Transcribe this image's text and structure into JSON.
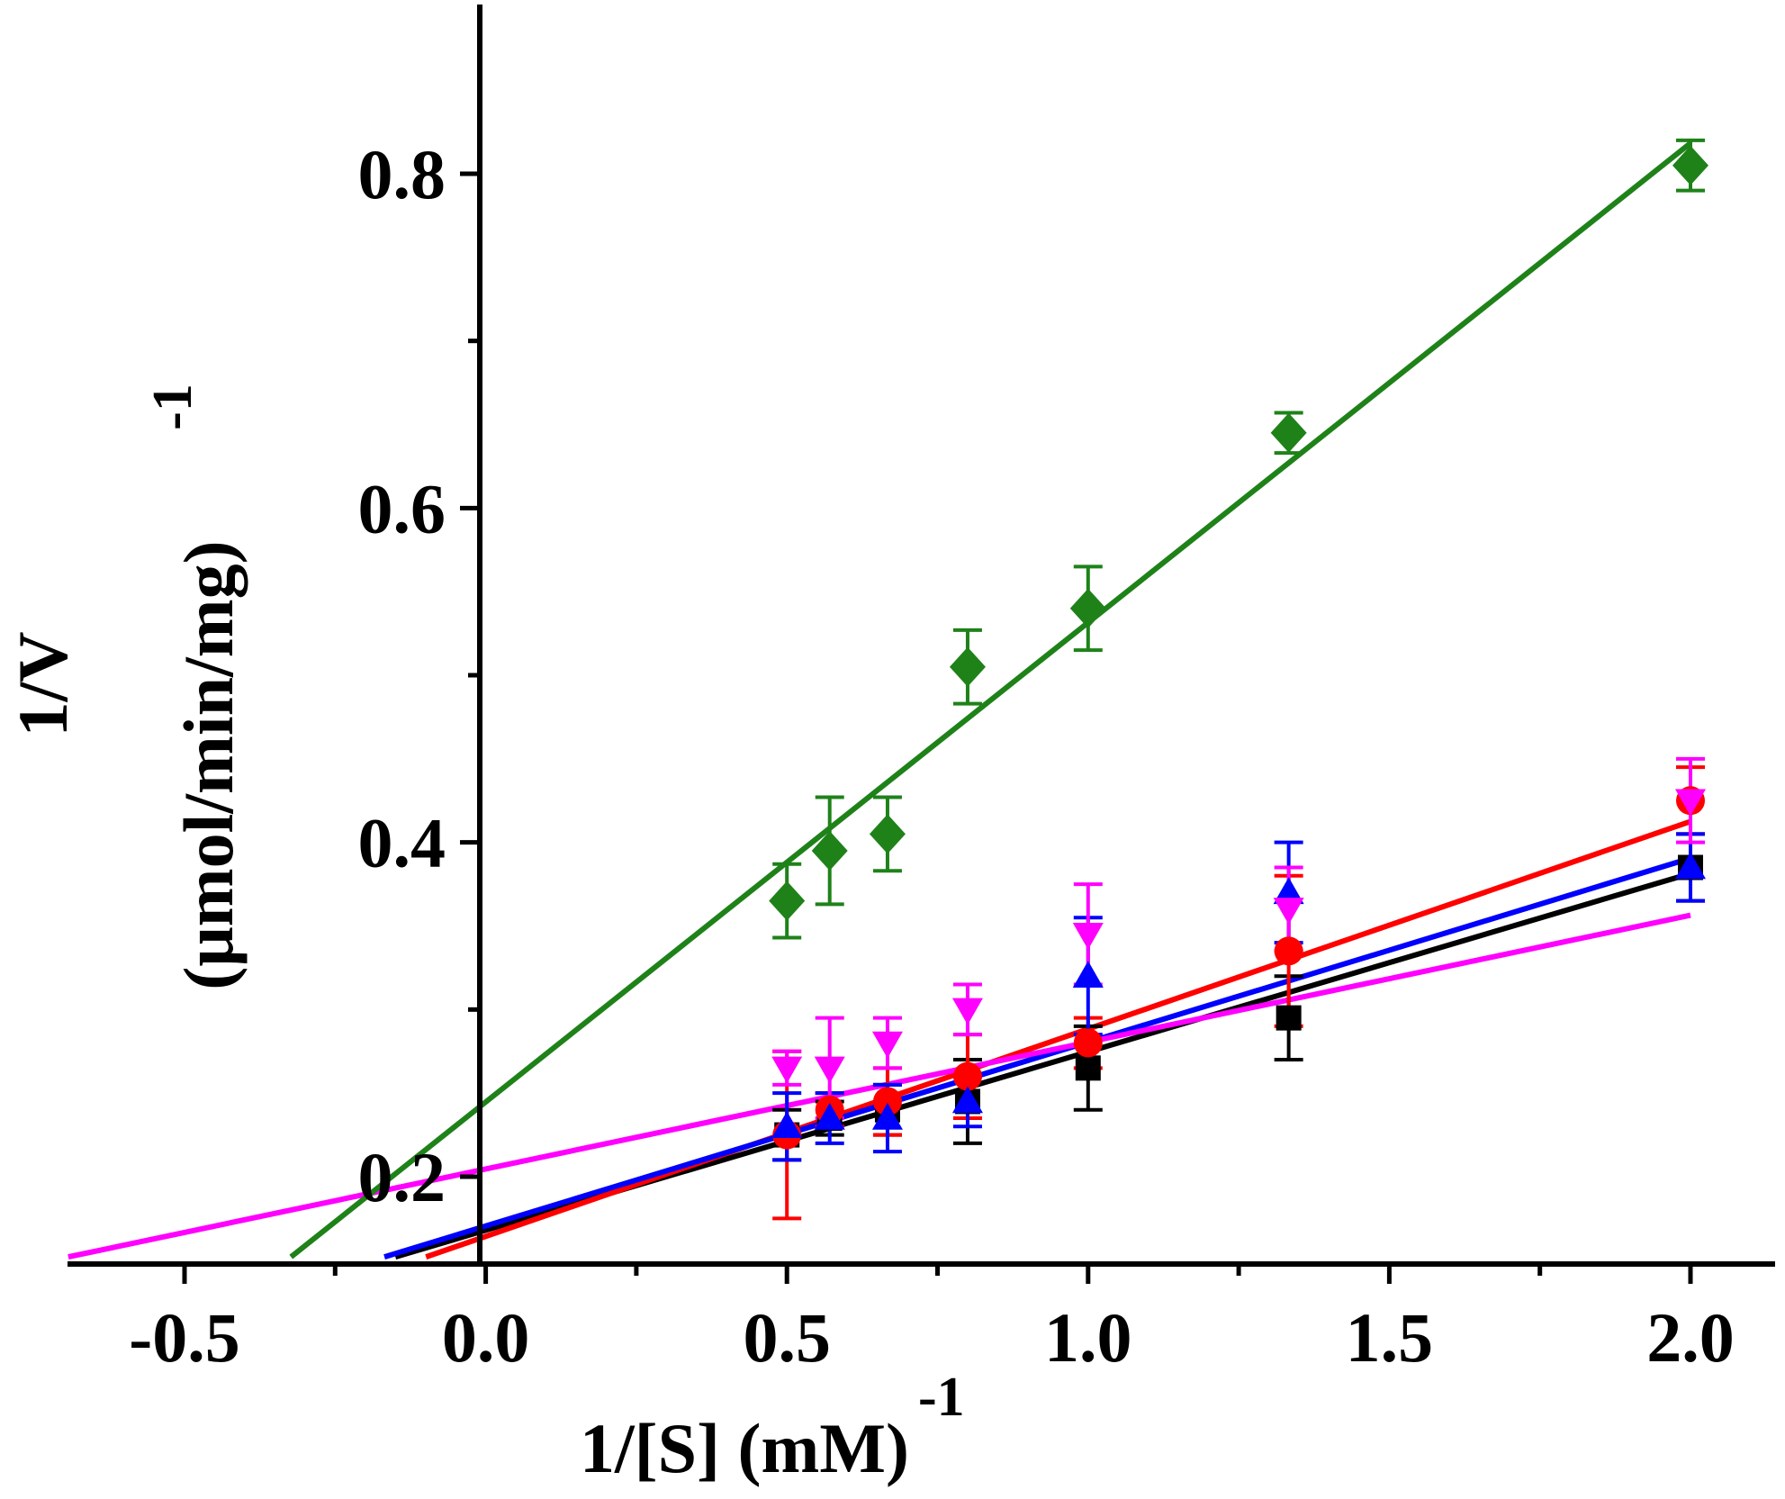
{
  "chart_data": {
    "type": "scatter",
    "title": "",
    "xlabel": "1/[S] (mM)",
    "xlabel_sup": "-1",
    "ylabel_line1": "1/V",
    "ylabel_line2": "(μmol/min/mg)",
    "ylabel_sup": "-1",
    "xlim": [
      -0.7,
      2.2
    ],
    "ylim": [
      0.152,
      0.885
    ],
    "x_ticks": [
      -0.5,
      0.0,
      0.5,
      1.0,
      1.5,
      2.0
    ],
    "x_tick_labels": [
      "-0.5",
      "0.0",
      "0.5",
      "1.0",
      "1.5",
      "2.0"
    ],
    "x_minor_ticks": [
      -0.25,
      0.25,
      0.75,
      1.25,
      1.75
    ],
    "y_ticks": [
      0.2,
      0.4,
      0.6,
      0.8
    ],
    "y_tick_labels": [
      "0.2",
      "0.4",
      "0.6",
      "0.8"
    ],
    "y_minor_ticks": [
      0.3,
      0.5,
      0.7
    ],
    "grid": false,
    "legend": "none",
    "x": [
      0.5,
      0.571,
      0.667,
      0.8,
      1.0,
      1.333,
      2.0
    ],
    "series": [
      {
        "name": "black",
        "color": "#000000",
        "marker": "square",
        "values": [
          0.225,
          0.235,
          0.24,
          0.245,
          0.265,
          0.295,
          0.385
        ],
        "errors": [
          0.015,
          0.01,
          0.015,
          0.025,
          0.025,
          0.025,
          0.02
        ],
        "fit": {
          "slope": 0.1067,
          "intercept": 0.168
        }
      },
      {
        "name": "red",
        "color": "#ff0000",
        "marker": "circle",
        "values": [
          0.225,
          0.24,
          0.245,
          0.26,
          0.28,
          0.335,
          0.425
        ],
        "errors": [
          0.05,
          0.01,
          0.02,
          0.025,
          0.015,
          0.045,
          0.02
        ],
        "fit": {
          "slope": 0.1241,
          "intercept": 0.1643
        }
      },
      {
        "name": "blue",
        "color": "#0000ff",
        "marker": "triangle-up",
        "values": [
          0.23,
          0.235,
          0.235,
          0.245,
          0.32,
          0.37,
          0.385
        ],
        "errors": [
          0.02,
          0.015,
          0.02,
          0.015,
          0.035,
          0.03,
          0.02
        ],
        "fit": {
          "slope": 0.11,
          "intercept": 0.1705
        }
      },
      {
        "name": "magenta",
        "color": "#ff00ff",
        "marker": "triangle-down",
        "values": [
          0.265,
          0.265,
          0.28,
          0.3,
          0.345,
          0.36,
          0.425
        ],
        "errors": [
          0.01,
          0.03,
          0.015,
          0.015,
          0.03,
          0.025,
          0.025
        ],
        "fit": {
          "slope": 0.0759,
          "intercept": 0.2046
        }
      },
      {
        "name": "green",
        "color": "#1e8219",
        "marker": "diamond",
        "values": [
          0.365,
          0.395,
          0.405,
          0.505,
          0.54,
          0.645,
          0.805
        ],
        "errors": [
          0.022,
          0.032,
          0.022,
          0.022,
          0.025,
          0.012,
          0.015
        ],
        "fit": {
          "slope": 0.2868,
          "intercept": 0.2447
        }
      }
    ]
  }
}
